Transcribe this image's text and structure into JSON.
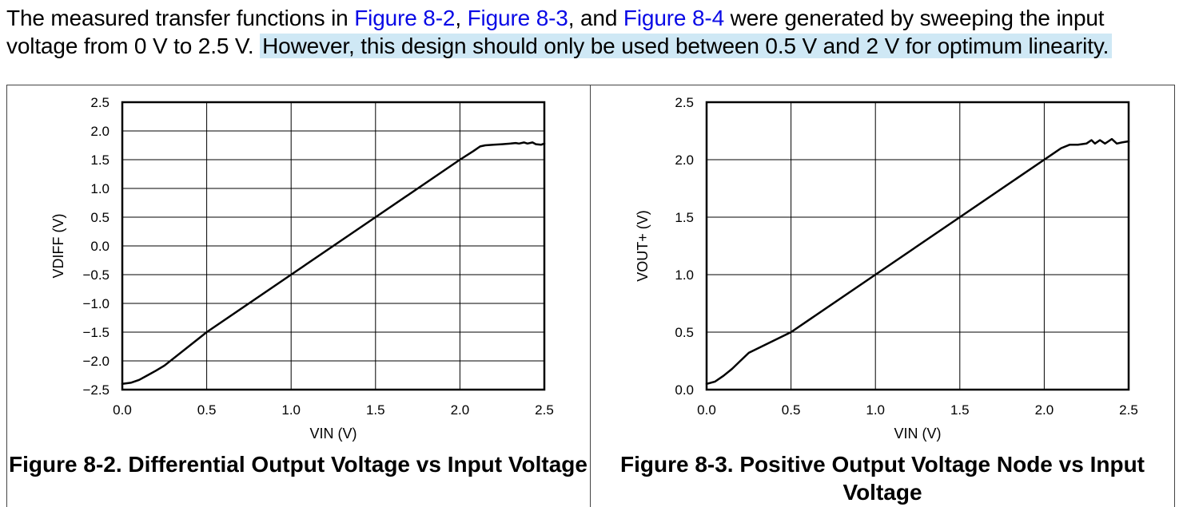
{
  "paragraph": {
    "part1": "The measured transfer functions in ",
    "link1": "Figure 8-2",
    "sep1": ", ",
    "link2": "Figure 8-3",
    "sep2": ", and ",
    "link3": "Figure 8-4",
    "part2": " were generated by sweeping the input voltage from 0 V to 2.5 V. ",
    "highlight": "However, this design should only be used between 0.5 V and 2 V for optimum linearity.",
    "highlight_color": "#cfe8f5",
    "link_color": "#0a0ae6"
  },
  "figures": [
    {
      "caption": "Figure 8-2. Differential Output Voltage vs Input Voltage"
    },
    {
      "caption": "Figure 8-3. Positive Output Voltage Node vs Input Voltage"
    }
  ],
  "chart_data": [
    {
      "type": "line",
      "xlabel": "VIN (V)",
      "ylabel": "VDIFF (V)",
      "xlim": [
        0,
        2.5
      ],
      "ylim": [
        -2.5,
        2.5
      ],
      "xticks": [
        "0.0",
        "0.5",
        "1.0",
        "1.5",
        "2.0",
        "2.5"
      ],
      "yticks": [
        "2.5",
        "2.0",
        "1.5",
        "1.0",
        "0.5",
        "0.0",
        "−0.5",
        "−1.0",
        "−1.5",
        "−2.0",
        "−2.5"
      ],
      "grid": true,
      "series": [
        {
          "x": [
            0,
            0.05,
            0.1,
            0.15,
            0.2,
            0.25,
            0.5,
            1.0,
            1.5,
            2.0,
            2.08,
            2.12,
            2.15,
            2.2,
            2.25,
            2.3,
            2.33,
            2.35,
            2.38,
            2.4,
            2.43,
            2.45,
            2.48,
            2.5
          ],
          "y": [
            -2.4,
            -2.38,
            -2.33,
            -2.25,
            -2.17,
            -2.08,
            -1.5,
            -0.5,
            0.5,
            1.5,
            1.65,
            1.73,
            1.75,
            1.76,
            1.77,
            1.78,
            1.79,
            1.78,
            1.8,
            1.78,
            1.8,
            1.77,
            1.76,
            1.78
          ]
        }
      ]
    },
    {
      "type": "line",
      "xlabel": "VIN (V)",
      "ylabel": "VOUT+ (V)",
      "xlim": [
        0,
        2.5
      ],
      "ylim": [
        0,
        2.5
      ],
      "xticks": [
        "0.0",
        "0.5",
        "1.0",
        "1.5",
        "2.0",
        "2.5"
      ],
      "yticks": [
        "2.5",
        "2.0",
        "1.5",
        "1.0",
        "0.5",
        "0.0"
      ],
      "grid": true,
      "series": [
        {
          "x": [
            0,
            0.05,
            0.1,
            0.15,
            0.2,
            0.25,
            0.5,
            1.0,
            1.5,
            2.0,
            2.05,
            2.1,
            2.15,
            2.2,
            2.25,
            2.28,
            2.3,
            2.33,
            2.36,
            2.38,
            2.4,
            2.43,
            2.46,
            2.5
          ],
          "y": [
            0.05,
            0.07,
            0.12,
            0.18,
            0.25,
            0.32,
            0.5,
            1.0,
            1.5,
            2.0,
            2.05,
            2.1,
            2.13,
            2.13,
            2.14,
            2.17,
            2.14,
            2.17,
            2.14,
            2.16,
            2.18,
            2.14,
            2.15,
            2.16
          ]
        }
      ]
    }
  ]
}
